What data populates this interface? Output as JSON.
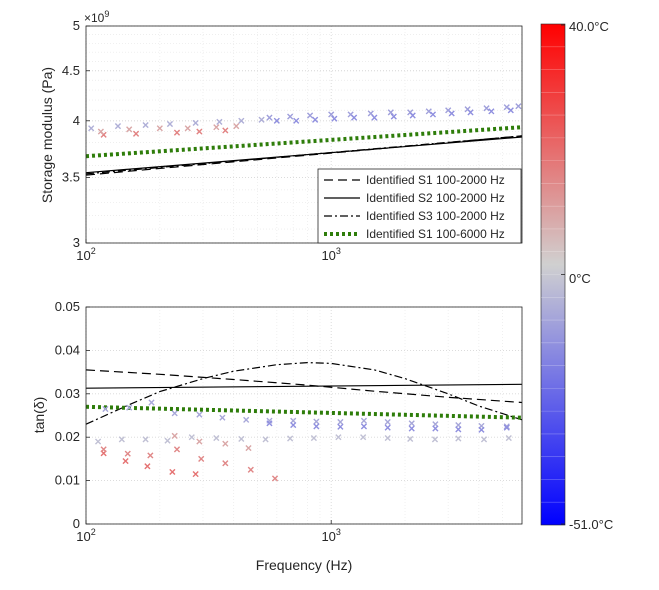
{
  "chart_data": [
    {
      "type": "line",
      "panel": "top",
      "ylabel": "Storage modulus (Pa)",
      "xscale": "log",
      "yscale": "log",
      "xlim": [
        100,
        6000
      ],
      "ylim": [
        3000000000.0,
        5000000000.0
      ],
      "y_exponent_label": "×10",
      "y_exponent_power": "9",
      "x_ticks": [
        {
          "v": 100,
          "base": "10",
          "exp": "2"
        },
        {
          "v": 1000,
          "base": "10",
          "exp": "3"
        }
      ],
      "y_ticks": [
        {
          "v": 3000000000.0,
          "label": "3"
        },
        {
          "v": 3500000000.0,
          "label": "3.5"
        },
        {
          "v": 4000000000.0,
          "label": "4"
        },
        {
          "v": 4500000000.0,
          "label": "4.5"
        },
        {
          "v": 5000000000.0,
          "label": "5"
        }
      ],
      "legend_position": "bottom-right",
      "series": [
        {
          "name": "Identified S1 100-2000 Hz",
          "style": "dashed",
          "color": "#000000",
          "x": [
            100,
            6000
          ],
          "y": [
            3520000000.0,
            3860000000.0
          ]
        },
        {
          "name": "Identified S2 100-2000 Hz",
          "style": "solid",
          "color": "#000000",
          "x": [
            100,
            6000
          ],
          "y": [
            3540000000.0,
            3850000000.0
          ]
        },
        {
          "name": "Identified S3 100-2000 Hz",
          "style": "dashdot",
          "color": "#000000",
          "x": [
            100,
            6000
          ],
          "y": [
            3530000000.0,
            3860000000.0
          ]
        },
        {
          "name": "Identified S1 100-6000 Hz",
          "style": "dotted-thick",
          "color": "#2e7d0a",
          "x": [
            100,
            6000
          ],
          "y": [
            3680000000.0,
            3940000000.0
          ]
        }
      ],
      "measurements": {
        "marker": "x",
        "groups": [
          {
            "temp_c": 15,
            "points": [
              [
                118,
                3870000000.0
              ],
              [
                160,
                3880000000.0
              ],
              [
                235,
                3890000000.0
              ],
              [
                290,
                3900000000.0
              ],
              [
                370,
                3910000000.0
              ]
            ]
          },
          {
            "temp_c": 8,
            "points": [
              [
                115,
                3900000000.0
              ],
              [
                150,
                3920000000.0
              ],
              [
                200,
                3930000000.0
              ],
              [
                260,
                3930000000.0
              ],
              [
                340,
                3940000000.0
              ],
              [
                410,
                3950000000.0
              ]
            ]
          },
          {
            "temp_c": -8,
            "points": [
              [
                105,
                3930000000.0
              ],
              [
                135,
                3950000000.0
              ],
              [
                175,
                3960000000.0
              ],
              [
                220,
                3970000000.0
              ],
              [
                280,
                3980000000.0
              ],
              [
                350,
                3990000000.0
              ],
              [
                430,
                4000000000.0
              ],
              [
                520,
                4010000000.0
              ]
            ]
          },
          {
            "temp_c": -12,
            "points": [
              [
                560,
                4030000000.0
              ],
              [
                680,
                4040000000.0
              ],
              [
                820,
                4050000000.0
              ],
              [
                1000,
                4060000000.0
              ],
              [
                1200,
                4060000000.0
              ],
              [
                1450,
                4070000000.0
              ],
              [
                1750,
                4080000000.0
              ],
              [
                2100,
                4080000000.0
              ],
              [
                2500,
                4090000000.0
              ],
              [
                3000,
                4100000000.0
              ],
              [
                3600,
                4110000000.0
              ],
              [
                4300,
                4120000000.0
              ],
              [
                5200,
                4130000000.0
              ],
              [
                5800,
                4140000000.0
              ]
            ]
          },
          {
            "temp_c": -16,
            "points": [
              [
                600,
                4000000000.0
              ],
              [
                720,
                4000000000.0
              ],
              [
                860,
                4010000000.0
              ],
              [
                1030,
                4020000000.0
              ],
              [
                1240,
                4030000000.0
              ],
              [
                1500,
                4030000000.0
              ],
              [
                1800,
                4040000000.0
              ],
              [
                2150,
                4050000000.0
              ],
              [
                2600,
                4060000000.0
              ],
              [
                3100,
                4070000000.0
              ],
              [
                3700,
                4080000000.0
              ],
              [
                4500,
                4090000000.0
              ],
              [
                5400,
                4100000000.0
              ]
            ]
          }
        ]
      }
    },
    {
      "type": "line",
      "panel": "bottom",
      "xlabel": "Frequency (Hz)",
      "ylabel": "tan(δ)",
      "xscale": "log",
      "xlim": [
        100,
        6000
      ],
      "ylim": [
        0,
        0.05
      ],
      "x_ticks": [
        {
          "v": 100,
          "base": "10",
          "exp": "2"
        },
        {
          "v": 1000,
          "base": "10",
          "exp": "3"
        }
      ],
      "y_ticks": [
        {
          "v": 0,
          "label": "0"
        },
        {
          "v": 0.01,
          "label": "0.01"
        },
        {
          "v": 0.02,
          "label": "0.02"
        },
        {
          "v": 0.03,
          "label": "0.03"
        },
        {
          "v": 0.04,
          "label": "0.04"
        },
        {
          "v": 0.05,
          "label": "0.05"
        }
      ],
      "series": [
        {
          "name": "Identified S1 100-2000 Hz",
          "style": "dashed",
          "color": "#000000",
          "x": [
            100,
            200,
            400,
            800,
            1500,
            3000,
            6000
          ],
          "y": [
            0.0355,
            0.0345,
            0.0333,
            0.032,
            0.0306,
            0.0292,
            0.028
          ]
        },
        {
          "name": "Identified S2 100-2000 Hz",
          "style": "solid",
          "color": "#000000",
          "x": [
            100,
            6000
          ],
          "y": [
            0.0313,
            0.0322
          ]
        },
        {
          "name": "Identified S3 100-2000 Hz",
          "style": "dashdot",
          "color": "#000000",
          "x": [
            100,
            150,
            200,
            300,
            400,
            600,
            800,
            1000,
            1500,
            2000,
            3000,
            4000,
            6000
          ],
          "y": [
            0.023,
            0.0275,
            0.0305,
            0.0335,
            0.0352,
            0.0367,
            0.0372,
            0.037,
            0.0355,
            0.0335,
            0.03,
            0.0272,
            0.024
          ]
        },
        {
          "name": "Identified S1 100-6000 Hz",
          "style": "dotted-thick",
          "color": "#2e7d0a",
          "x": [
            100,
            6000
          ],
          "y": [
            0.027,
            0.0245
          ]
        }
      ],
      "measurements": {
        "marker": "x",
        "groups": [
          {
            "temp_c": 18,
            "points": [
              [
                118,
                0.0163
              ],
              [
                145,
                0.0145
              ],
              [
                178,
                0.0133
              ],
              [
                225,
                0.012
              ],
              [
                280,
                0.0115
              ]
            ]
          },
          {
            "temp_c": 14,
            "points": [
              [
                118,
                0.0172
              ],
              [
                148,
                0.0162
              ],
              [
                183,
                0.0158
              ],
              [
                235,
                0.0172
              ],
              [
                295,
                0.015
              ],
              [
                370,
                0.014
              ],
              [
                470,
                0.0125
              ],
              [
                590,
                0.0105
              ]
            ]
          },
          {
            "temp_c": 8,
            "points": [
              [
                230,
                0.0203
              ],
              [
                290,
                0.019
              ],
              [
                370,
                0.0185
              ],
              [
                460,
                0.0175
              ]
            ]
          },
          {
            "temp_c": -4,
            "points": [
              [
                112,
                0.019
              ],
              [
                140,
                0.0195
              ],
              [
                175,
                0.0195
              ],
              [
                215,
                0.0192
              ],
              [
                270,
                0.02
              ],
              [
                340,
                0.0198
              ],
              [
                430,
                0.0196
              ],
              [
                540,
                0.0195
              ],
              [
                680,
                0.0197
              ],
              [
                850,
                0.0198
              ],
              [
                1070,
                0.02
              ],
              [
                1350,
                0.02
              ],
              [
                1700,
                0.0198
              ],
              [
                2100,
                0.0196
              ],
              [
                2650,
                0.0195
              ],
              [
                3300,
                0.0197
              ],
              [
                4200,
                0.0195
              ],
              [
                5300,
                0.0198
              ]
            ]
          },
          {
            "temp_c": -10,
            "points": [
              [
                120,
                0.0265
              ],
              [
                150,
                0.0268
              ],
              [
                185,
                0.028
              ],
              [
                230,
                0.0255
              ],
              [
                290,
                0.0252
              ],
              [
                360,
                0.0245
              ],
              [
                450,
                0.024
              ],
              [
                560,
                0.0238
              ],
              [
                700,
                0.0238
              ],
              [
                870,
                0.0236
              ],
              [
                1090,
                0.0235
              ],
              [
                1360,
                0.0238
              ],
              [
                1700,
                0.0235
              ],
              [
                2130,
                0.0232
              ],
              [
                2660,
                0.023
              ],
              [
                3300,
                0.0228
              ],
              [
                4100,
                0.0226
              ],
              [
                5200,
                0.0225
              ]
            ]
          },
          {
            "temp_c": -16,
            "points": [
              [
                560,
                0.0232
              ],
              [
                700,
                0.0228
              ],
              [
                870,
                0.0225
              ],
              [
                1090,
                0.0224
              ],
              [
                1360,
                0.0225
              ],
              [
                1700,
                0.0222
              ],
              [
                2130,
                0.022
              ],
              [
                2660,
                0.022
              ],
              [
                3300,
                0.0218
              ],
              [
                4100,
                0.0217
              ],
              [
                5200,
                0.0222
              ]
            ]
          }
        ]
      }
    }
  ],
  "colorbar": {
    "max_label": "40.0°C",
    "mid_label": "0°C",
    "min_label": "-51.0°C",
    "max_temp": 40,
    "min_temp": -51,
    "hot_color": "#ff0000",
    "neutral_color": "#d0d0d0",
    "cold_color": "#0000ff"
  }
}
